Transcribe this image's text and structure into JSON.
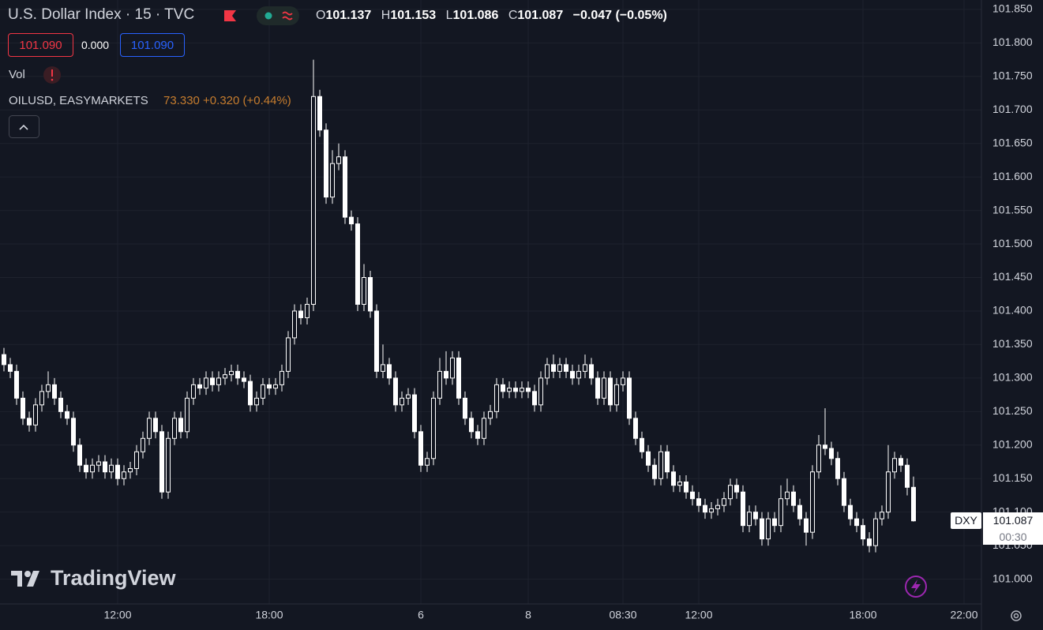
{
  "chart_data": {
    "type": "candlestick",
    "title": "U.S. Dollar Index · 15 · TVC",
    "ohlc_labels": [
      "O",
      "H",
      "L",
      "C"
    ],
    "change": "−0.047 (−0.05%)",
    "bid": "101.090",
    "spread": "0.000",
    "ask": "101.090",
    "volume_label": "Vol",
    "compare_symbol": "OILUSD, EASYMARKETS",
    "compare_quote": "73.330 +0.320 (+0.44%)",
    "symbol": "DXY",
    "countdown": "00:30",
    "watermark": "TradingView",
    "color": "#ffffff",
    "categories": [
      null,
      null,
      null,
      null,
      null,
      null,
      null,
      null,
      null,
      null,
      null,
      null,
      null,
      null,
      null,
      null,
      null,
      null,
      "12:00",
      null,
      null,
      null,
      null,
      null,
      null,
      null,
      null,
      null,
      null,
      null,
      null,
      null,
      null,
      null,
      null,
      null,
      null,
      null,
      null,
      null,
      null,
      null,
      "18:00",
      null,
      null,
      null,
      null,
      null,
      null,
      null,
      null,
      null,
      null,
      null,
      null,
      null,
      null,
      null,
      null,
      null,
      null,
      null,
      null,
      null,
      null,
      null,
      "6",
      null,
      null,
      null,
      null,
      null,
      null,
      null,
      null,
      null,
      null,
      null,
      null,
      null,
      null,
      null,
      null,
      "8",
      null,
      null,
      null,
      null,
      null,
      null,
      null,
      null,
      null,
      null,
      null,
      null,
      null,
      null,
      "08:30",
      null,
      null,
      null,
      null,
      null,
      null,
      null,
      null,
      null,
      null,
      null,
      "12:00",
      null,
      null,
      null,
      null,
      null,
      null,
      null,
      null,
      null,
      null,
      null,
      null,
      null,
      null,
      null,
      null,
      null,
      null,
      null,
      null,
      null,
      null,
      null,
      null,
      null,
      "18:00",
      null,
      null,
      null,
      null,
      null,
      null,
      null,
      null,
      null,
      null,
      null,
      null,
      null,
      null,
      null,
      "22:00"
    ],
    "candles": [
      [
        101.335,
        101.345,
        101.31,
        101.32
      ],
      [
        101.32,
        101.33,
        101.3,
        101.31
      ],
      [
        101.31,
        101.32,
        101.26,
        101.27
      ],
      [
        101.27,
        101.28,
        101.23,
        101.24
      ],
      [
        101.24,
        101.25,
        101.22,
        101.23
      ],
      [
        101.23,
        101.27,
        101.22,
        101.26
      ],
      [
        101.26,
        101.29,
        101.25,
        101.28
      ],
      [
        101.28,
        101.31,
        101.27,
        101.29
      ],
      [
        101.29,
        101.3,
        101.26,
        101.27
      ],
      [
        101.27,
        101.28,
        101.24,
        101.25
      ],
      [
        101.25,
        101.26,
        101.23,
        101.24
      ],
      [
        101.24,
        101.25,
        101.19,
        101.2
      ],
      [
        101.2,
        101.21,
        101.16,
        101.17
      ],
      [
        101.17,
        101.18,
        101.15,
        101.16
      ],
      [
        101.16,
        101.18,
        101.15,
        101.17
      ],
      [
        101.17,
        101.185,
        101.16,
        101.175
      ],
      [
        101.175,
        101.185,
        101.15,
        101.16
      ],
      [
        101.16,
        101.18,
        101.15,
        101.17
      ],
      [
        101.17,
        101.18,
        101.14,
        101.15
      ],
      [
        101.15,
        101.17,
        101.14,
        101.16
      ],
      [
        101.16,
        101.175,
        101.15,
        101.165
      ],
      [
        101.165,
        101.2,
        101.155,
        101.19
      ],
      [
        101.19,
        101.22,
        101.18,
        101.21
      ],
      [
        101.21,
        101.25,
        101.2,
        101.24
      ],
      [
        101.24,
        101.25,
        101.21,
        101.22
      ],
      [
        101.22,
        101.23,
        101.12,
        101.13
      ],
      [
        101.13,
        101.22,
        101.12,
        101.21
      ],
      [
        101.21,
        101.25,
        101.2,
        101.24
      ],
      [
        101.24,
        101.25,
        101.21,
        101.22
      ],
      [
        101.22,
        101.28,
        101.21,
        101.27
      ],
      [
        101.27,
        101.3,
        101.26,
        101.29
      ],
      [
        101.29,
        101.3,
        101.275,
        101.285
      ],
      [
        101.285,
        101.31,
        101.275,
        101.3
      ],
      [
        101.3,
        101.31,
        101.28,
        101.29
      ],
      [
        101.29,
        101.31,
        101.28,
        101.3
      ],
      [
        101.3,
        101.315,
        101.29,
        101.305
      ],
      [
        101.305,
        101.32,
        101.295,
        101.31
      ],
      [
        101.31,
        101.32,
        101.29,
        101.3
      ],
      [
        101.3,
        101.31,
        101.285,
        101.295
      ],
      [
        101.295,
        101.305,
        101.25,
        101.26
      ],
      [
        101.26,
        101.28,
        101.25,
        101.27
      ],
      [
        101.27,
        101.3,
        101.26,
        101.29
      ],
      [
        101.29,
        101.3,
        101.275,
        101.285
      ],
      [
        101.285,
        101.3,
        101.275,
        101.29
      ],
      [
        101.29,
        101.32,
        101.28,
        101.31
      ],
      [
        101.31,
        101.37,
        101.3,
        101.36
      ],
      [
        101.36,
        101.41,
        101.35,
        101.4
      ],
      [
        101.4,
        101.41,
        101.38,
        101.39
      ],
      [
        101.39,
        101.42,
        101.38,
        101.41
      ],
      [
        101.41,
        101.775,
        101.4,
        101.72
      ],
      [
        101.72,
        101.73,
        101.66,
        101.67
      ],
      [
        101.67,
        101.68,
        101.56,
        101.57
      ],
      [
        101.57,
        101.64,
        101.56,
        101.62
      ],
      [
        101.62,
        101.65,
        101.61,
        101.63
      ],
      [
        101.63,
        101.64,
        101.53,
        101.54
      ],
      [
        101.54,
        101.55,
        101.52,
        101.53
      ],
      [
        101.53,
        101.54,
        101.4,
        101.41
      ],
      [
        101.41,
        101.47,
        101.4,
        101.45
      ],
      [
        101.45,
        101.46,
        101.39,
        101.4
      ],
      [
        101.4,
        101.41,
        101.3,
        101.31
      ],
      [
        101.31,
        101.35,
        101.3,
        101.32
      ],
      [
        101.32,
        101.33,
        101.29,
        101.3
      ],
      [
        101.3,
        101.31,
        101.25,
        101.26
      ],
      [
        101.26,
        101.28,
        101.25,
        101.27
      ],
      [
        101.27,
        101.285,
        101.26,
        101.275
      ],
      [
        101.275,
        101.285,
        101.21,
        101.22
      ],
      [
        101.22,
        101.23,
        101.16,
        101.17
      ],
      [
        101.17,
        101.19,
        101.16,
        101.18
      ],
      [
        101.18,
        101.28,
        101.17,
        101.27
      ],
      [
        101.27,
        101.33,
        101.26,
        101.31
      ],
      [
        101.31,
        101.34,
        101.29,
        101.3
      ],
      [
        101.3,
        101.34,
        101.29,
        101.33
      ],
      [
        101.33,
        101.34,
        101.26,
        101.27
      ],
      [
        101.27,
        101.28,
        101.23,
        101.24
      ],
      [
        101.24,
        101.25,
        101.21,
        101.22
      ],
      [
        101.22,
        101.23,
        101.2,
        101.21
      ],
      [
        101.21,
        101.25,
        101.2,
        101.24
      ],
      [
        101.24,
        101.26,
        101.23,
        101.25
      ],
      [
        101.25,
        101.3,
        101.24,
        101.29
      ],
      [
        101.29,
        101.3,
        101.27,
        101.28
      ],
      [
        101.28,
        101.295,
        101.27,
        101.285
      ],
      [
        101.285,
        101.295,
        101.27,
        101.28
      ],
      [
        101.28,
        101.295,
        101.27,
        101.285
      ],
      [
        101.285,
        101.295,
        101.27,
        101.28
      ],
      [
        101.28,
        101.29,
        101.25,
        101.26
      ],
      [
        101.26,
        101.31,
        101.25,
        101.3
      ],
      [
        101.3,
        101.33,
        101.29,
        101.32
      ],
      [
        101.32,
        101.335,
        101.3,
        101.31
      ],
      [
        101.31,
        101.33,
        101.3,
        101.32
      ],
      [
        101.32,
        101.33,
        101.3,
        101.31
      ],
      [
        101.31,
        101.32,
        101.29,
        101.3
      ],
      [
        101.3,
        101.32,
        101.29,
        101.31
      ],
      [
        101.31,
        101.335,
        101.3,
        101.32
      ],
      [
        101.32,
        101.33,
        101.29,
        101.3
      ],
      [
        101.3,
        101.31,
        101.26,
        101.27
      ],
      [
        101.27,
        101.31,
        101.26,
        101.3
      ],
      [
        101.3,
        101.31,
        101.25,
        101.26
      ],
      [
        101.26,
        101.3,
        101.25,
        101.29
      ],
      [
        101.29,
        101.31,
        101.28,
        101.3
      ],
      [
        101.3,
        101.31,
        101.23,
        101.24
      ],
      [
        101.24,
        101.25,
        101.2,
        101.21
      ],
      [
        101.21,
        101.22,
        101.18,
        101.19
      ],
      [
        101.19,
        101.2,
        101.16,
        101.17
      ],
      [
        101.17,
        101.18,
        101.14,
        101.15
      ],
      [
        101.15,
        101.2,
        101.14,
        101.19
      ],
      [
        101.19,
        101.2,
        101.15,
        101.16
      ],
      [
        101.16,
        101.17,
        101.13,
        101.14
      ],
      [
        101.14,
        101.155,
        101.13,
        101.145
      ],
      [
        101.145,
        101.155,
        101.12,
        101.13
      ],
      [
        101.13,
        101.14,
        101.11,
        101.12
      ],
      [
        101.12,
        101.13,
        101.1,
        101.11
      ],
      [
        101.11,
        101.12,
        101.09,
        101.1
      ],
      [
        101.1,
        101.115,
        101.09,
        101.105
      ],
      [
        101.105,
        101.12,
        101.095,
        101.11
      ],
      [
        101.11,
        101.13,
        101.1,
        101.12
      ],
      [
        101.12,
        101.15,
        101.11,
        101.14
      ],
      [
        101.14,
        101.15,
        101.12,
        101.13
      ],
      [
        101.13,
        101.14,
        101.07,
        101.08
      ],
      [
        101.08,
        101.11,
        101.07,
        101.1
      ],
      [
        101.1,
        101.11,
        101.08,
        101.09
      ],
      [
        101.09,
        101.1,
        101.05,
        101.06
      ],
      [
        101.06,
        101.1,
        101.05,
        101.09
      ],
      [
        101.09,
        101.1,
        101.07,
        101.08
      ],
      [
        101.08,
        101.14,
        101.07,
        101.12
      ],
      [
        101.12,
        101.15,
        101.11,
        101.13
      ],
      [
        101.13,
        101.14,
        101.1,
        101.11
      ],
      [
        101.11,
        101.12,
        101.08,
        101.09
      ],
      [
        101.09,
        101.1,
        101.05,
        101.07
      ],
      [
        101.07,
        101.17,
        101.06,
        101.16
      ],
      [
        101.16,
        101.215,
        101.15,
        101.2
      ],
      [
        101.2,
        101.255,
        101.185,
        101.195
      ],
      [
        101.195,
        101.205,
        101.17,
        101.18
      ],
      [
        101.18,
        101.19,
        101.14,
        101.15
      ],
      [
        101.15,
        101.16,
        101.1,
        101.11
      ],
      [
        101.11,
        101.12,
        101.08,
        101.09
      ],
      [
        101.09,
        101.1,
        101.07,
        101.08
      ],
      [
        101.08,
        101.09,
        101.05,
        101.06
      ],
      [
        101.06,
        101.07,
        101.04,
        101.05
      ],
      [
        101.05,
        101.1,
        101.04,
        101.09
      ],
      [
        101.09,
        101.11,
        101.08,
        101.1
      ],
      [
        101.1,
        101.2,
        101.09,
        101.16
      ],
      [
        101.16,
        101.19,
        101.15,
        101.18
      ],
      [
        101.18,
        101.185,
        101.16,
        101.17
      ],
      [
        101.17,
        101.18,
        101.125,
        101.137
      ],
      [
        101.137,
        101.153,
        101.086,
        101.087
      ],
      null,
      null,
      null,
      null,
      null,
      null,
      null,
      null
    ],
    "ylim": [
      100.963,
      101.864
    ],
    "yticks": [
      {
        "value": 101,
        "label": "101.000"
      },
      {
        "value": 101.05,
        "label": "101.050"
      },
      {
        "value": 101.1,
        "label": "101.100"
      },
      {
        "value": 101.15,
        "label": "101.150"
      },
      {
        "value": 101.2,
        "label": "101.200"
      },
      {
        "value": 101.25,
        "label": "101.250"
      },
      {
        "value": 101.3,
        "label": "101.300"
      },
      {
        "value": 101.35,
        "label": "101.350"
      },
      {
        "value": 101.4,
        "label": "101.400"
      },
      {
        "value": 101.45,
        "label": "101.450"
      },
      {
        "value": 101.5,
        "label": "101.500"
      },
      {
        "value": 101.55,
        "label": "101.550"
      },
      {
        "value": 101.6,
        "label": "101.600"
      },
      {
        "value": 101.65,
        "label": "101.650"
      },
      {
        "value": 101.7,
        "label": "101.700"
      },
      {
        "value": 101.75,
        "label": "101.750"
      },
      {
        "value": 101.8,
        "label": "101.800"
      },
      {
        "value": 101.85,
        "label": "101.850"
      }
    ],
    "grid": true
  }
}
